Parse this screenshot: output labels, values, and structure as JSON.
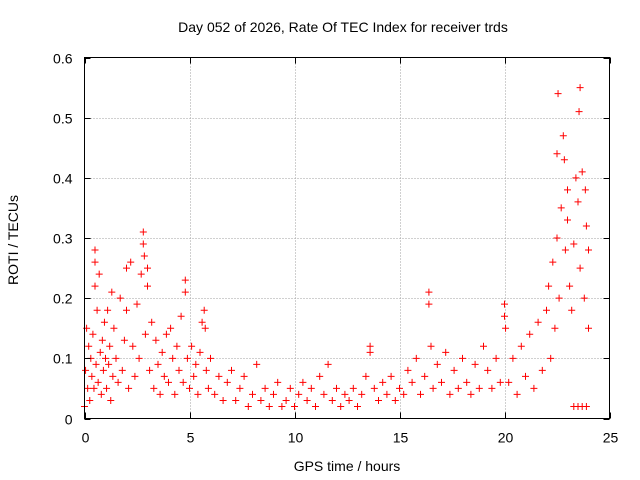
{
  "chart_data": {
    "type": "scatter",
    "title": "Day 052 of 2026, Rate Of TEC Index for receiver trds",
    "xlabel": "GPS time / hours",
    "ylabel": "ROTI / TECUs",
    "xlim": [
      0,
      25
    ],
    "ylim": [
      0,
      0.6
    ],
    "xticks": [
      0,
      5,
      10,
      15,
      20,
      25
    ],
    "xtick_labels": [
      "0",
      "5",
      "10",
      "15",
      "20",
      "25"
    ],
    "yticks": [
      0,
      0.1,
      0.2,
      0.3,
      0.4,
      0.5,
      0.6
    ],
    "ytick_labels": [
      "0",
      "0.1",
      "0.2",
      "0.3",
      "0.4",
      "0.5",
      "0.6"
    ],
    "grid": true,
    "marker": "+",
    "marker_color": "#ff0000",
    "series": [
      {
        "points": [
          [
            0.0,
            0.02
          ],
          [
            0.05,
            0.08
          ],
          [
            0.1,
            0.15
          ],
          [
            0.15,
            0.05
          ],
          [
            0.2,
            0.12
          ],
          [
            0.25,
            0.03
          ],
          [
            0.3,
            0.1
          ],
          [
            0.35,
            0.07
          ],
          [
            0.4,
            0.14
          ],
          [
            0.45,
            0.05
          ],
          [
            0.5,
            0.22
          ],
          [
            0.5,
            0.28
          ],
          [
            0.5,
            0.26
          ],
          [
            0.55,
            0.09
          ],
          [
            0.6,
            0.18
          ],
          [
            0.65,
            0.06
          ],
          [
            0.7,
            0.24
          ],
          [
            0.75,
            0.11
          ],
          [
            0.8,
            0.04
          ],
          [
            0.85,
            0.13
          ],
          [
            0.9,
            0.08
          ],
          [
            0.95,
            0.16
          ],
          [
            1.0,
            0.1
          ],
          [
            1.05,
            0.05
          ],
          [
            1.1,
            0.18
          ],
          [
            1.15,
            0.09
          ],
          [
            1.2,
            0.12
          ],
          [
            1.25,
            0.03
          ],
          [
            1.3,
            0.21
          ],
          [
            1.35,
            0.07
          ],
          [
            1.4,
            0.15
          ],
          [
            1.5,
            0.1
          ],
          [
            1.6,
            0.06
          ],
          [
            1.7,
            0.2
          ],
          [
            1.8,
            0.08
          ],
          [
            1.9,
            0.13
          ],
          [
            2.0,
            0.25
          ],
          [
            2.0,
            0.18
          ],
          [
            2.1,
            0.05
          ],
          [
            2.2,
            0.26
          ],
          [
            2.3,
            0.12
          ],
          [
            2.4,
            0.07
          ],
          [
            2.5,
            0.19
          ],
          [
            2.6,
            0.1
          ],
          [
            2.7,
            0.24
          ],
          [
            2.8,
            0.31
          ],
          [
            2.8,
            0.29
          ],
          [
            2.85,
            0.27
          ],
          [
            2.9,
            0.14
          ],
          [
            3.0,
            0.25
          ],
          [
            3.0,
            0.22
          ],
          [
            3.1,
            0.08
          ],
          [
            3.2,
            0.16
          ],
          [
            3.3,
            0.05
          ],
          [
            3.4,
            0.13
          ],
          [
            3.5,
            0.09
          ],
          [
            3.6,
            0.04
          ],
          [
            3.7,
            0.11
          ],
          [
            3.8,
            0.07
          ],
          [
            3.9,
            0.14
          ],
          [
            4.0,
            0.06
          ],
          [
            4.1,
            0.15
          ],
          [
            4.2,
            0.1
          ],
          [
            4.3,
            0.04
          ],
          [
            4.4,
            0.12
          ],
          [
            4.5,
            0.08
          ],
          [
            4.6,
            0.17
          ],
          [
            4.7,
            0.06
          ],
          [
            4.8,
            0.23
          ],
          [
            4.8,
            0.21
          ],
          [
            4.9,
            0.1
          ],
          [
            5.0,
            0.05
          ],
          [
            5.1,
            0.12
          ],
          [
            5.2,
            0.07
          ],
          [
            5.3,
            0.09
          ],
          [
            5.4,
            0.04
          ],
          [
            5.5,
            0.11
          ],
          [
            5.6,
            0.16
          ],
          [
            5.7,
            0.18
          ],
          [
            5.75,
            0.15
          ],
          [
            5.8,
            0.08
          ],
          [
            5.9,
            0.05
          ],
          [
            6.0,
            0.1
          ],
          [
            6.2,
            0.04
          ],
          [
            6.4,
            0.07
          ],
          [
            6.6,
            0.03
          ],
          [
            6.8,
            0.06
          ],
          [
            7.0,
            0.08
          ],
          [
            7.2,
            0.03
          ],
          [
            7.4,
            0.05
          ],
          [
            7.6,
            0.07
          ],
          [
            7.8,
            0.02
          ],
          [
            8.0,
            0.04
          ],
          [
            8.2,
            0.09
          ],
          [
            8.4,
            0.03
          ],
          [
            8.6,
            0.05
          ],
          [
            8.8,
            0.02
          ],
          [
            9.0,
            0.04
          ],
          [
            9.2,
            0.06
          ],
          [
            9.4,
            0.02
          ],
          [
            9.6,
            0.03
          ],
          [
            9.8,
            0.05
          ],
          [
            10.0,
            0.02
          ],
          [
            10.2,
            0.04
          ],
          [
            10.4,
            0.06
          ],
          [
            10.6,
            0.03
          ],
          [
            10.8,
            0.05
          ],
          [
            11.0,
            0.02
          ],
          [
            11.2,
            0.07
          ],
          [
            11.4,
            0.04
          ],
          [
            11.6,
            0.09
          ],
          [
            11.8,
            0.03
          ],
          [
            12.0,
            0.05
          ],
          [
            12.2,
            0.02
          ],
          [
            12.4,
            0.04
          ],
          [
            12.6,
            0.03
          ],
          [
            12.8,
            0.05
          ],
          [
            13.0,
            0.02
          ],
          [
            13.2,
            0.04
          ],
          [
            13.4,
            0.07
          ],
          [
            13.6,
            0.12
          ],
          [
            13.6,
            0.11
          ],
          [
            13.8,
            0.05
          ],
          [
            14.0,
            0.03
          ],
          [
            14.2,
            0.06
          ],
          [
            14.4,
            0.04
          ],
          [
            14.6,
            0.07
          ],
          [
            14.8,
            0.03
          ],
          [
            15.0,
            0.05
          ],
          [
            15.2,
            0.04
          ],
          [
            15.4,
            0.08
          ],
          [
            15.6,
            0.06
          ],
          [
            15.8,
            0.1
          ],
          [
            16.0,
            0.04
          ],
          [
            16.2,
            0.07
          ],
          [
            16.4,
            0.21
          ],
          [
            16.4,
            0.19
          ],
          [
            16.5,
            0.12
          ],
          [
            16.6,
            0.05
          ],
          [
            16.8,
            0.09
          ],
          [
            17.0,
            0.06
          ],
          [
            17.2,
            0.11
          ],
          [
            17.4,
            0.04
          ],
          [
            17.6,
            0.08
          ],
          [
            17.8,
            0.05
          ],
          [
            18.0,
            0.1
          ],
          [
            18.2,
            0.06
          ],
          [
            18.4,
            0.04
          ],
          [
            18.6,
            0.09
          ],
          [
            18.8,
            0.05
          ],
          [
            19.0,
            0.12
          ],
          [
            19.2,
            0.08
          ],
          [
            19.4,
            0.05
          ],
          [
            19.6,
            0.1
          ],
          [
            19.8,
            0.06
          ],
          [
            20.0,
            0.19
          ],
          [
            20.0,
            0.17
          ],
          [
            20.05,
            0.15
          ],
          [
            20.2,
            0.06
          ],
          [
            20.4,
            0.1
          ],
          [
            20.6,
            0.04
          ],
          [
            20.8,
            0.12
          ],
          [
            21.0,
            0.07
          ],
          [
            21.2,
            0.14
          ],
          [
            21.4,
            0.05
          ],
          [
            21.6,
            0.16
          ],
          [
            21.8,
            0.08
          ],
          [
            22.0,
            0.18
          ],
          [
            22.1,
            0.22
          ],
          [
            22.2,
            0.1
          ],
          [
            22.3,
            0.26
          ],
          [
            22.4,
            0.15
          ],
          [
            22.5,
            0.3
          ],
          [
            22.5,
            0.44
          ],
          [
            22.55,
            0.54
          ],
          [
            22.6,
            0.2
          ],
          [
            22.7,
            0.35
          ],
          [
            22.8,
            0.47
          ],
          [
            22.85,
            0.43
          ],
          [
            22.9,
            0.28
          ],
          [
            23.0,
            0.38
          ],
          [
            23.0,
            0.33
          ],
          [
            23.1,
            0.22
          ],
          [
            23.2,
            0.18
          ],
          [
            23.3,
            0.29
          ],
          [
            23.4,
            0.4
          ],
          [
            23.5,
            0.36
          ],
          [
            23.55,
            0.51
          ],
          [
            23.6,
            0.55
          ],
          [
            23.6,
            0.25
          ],
          [
            23.7,
            0.41
          ],
          [
            23.8,
            0.2
          ],
          [
            23.85,
            0.38
          ],
          [
            23.9,
            0.32
          ],
          [
            24.0,
            0.15
          ],
          [
            24.0,
            0.28
          ],
          [
            23.9,
            0.02
          ],
          [
            23.7,
            0.02
          ],
          [
            23.5,
            0.02
          ],
          [
            23.3,
            0.02
          ]
        ]
      }
    ]
  }
}
